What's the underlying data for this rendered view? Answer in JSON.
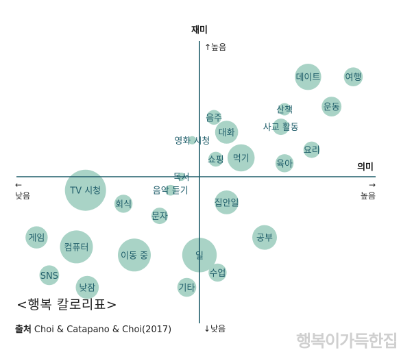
{
  "chart_data": {
    "type": "scatter",
    "title": "<행복 칼로리표>",
    "source_label": "출처",
    "source_text": "Choi & Catapano & Choi(2017)",
    "x_axis": {
      "name": "의미",
      "low": "낮음",
      "high": "높음",
      "low_arrow": "←",
      "high_arrow": "→"
    },
    "y_axis": {
      "name": "재미",
      "high": "↑높음",
      "low": "↓낮음"
    },
    "xlim": [
      -10,
      10
    ],
    "ylim": [
      -10,
      10
    ],
    "points": [
      {
        "label": "데이트",
        "x": 6.0,
        "y": 7.4,
        "size": 3.2
      },
      {
        "label": "여행",
        "x": 8.5,
        "y": 7.4,
        "size": 2.3
      },
      {
        "label": "운동",
        "x": 7.3,
        "y": 5.2,
        "size": 2.4
      },
      {
        "label": "산책",
        "x": 4.7,
        "y": 5.0,
        "size": 1.5
      },
      {
        "label": "사교 활동",
        "x": 4.5,
        "y": 3.7,
        "size": 2.0
      },
      {
        "label": "음주",
        "x": 0.8,
        "y": 4.4,
        "size": 1.8
      },
      {
        "label": "대화",
        "x": 1.5,
        "y": 3.3,
        "size": 2.8
      },
      {
        "label": "영화 시청",
        "x": -0.4,
        "y": 2.7,
        "size": 1.0
      },
      {
        "label": "먹기",
        "x": 2.3,
        "y": 1.4,
        "size": 3.3
      },
      {
        "label": "쇼핑",
        "x": 0.9,
        "y": 1.3,
        "size": 1.8
      },
      {
        "label": "요리",
        "x": 6.2,
        "y": 2.0,
        "size": 2.0
      },
      {
        "label": "육아",
        "x": 4.7,
        "y": 1.0,
        "size": 2.2
      },
      {
        "label": "독서",
        "x": -1.0,
        "y": 0.0,
        "size": 1.0
      },
      {
        "label": "음악 듣기",
        "x": -1.6,
        "y": -1.0,
        "size": 1.3
      },
      {
        "label": "TV 시청",
        "x": -6.3,
        "y": -1.0,
        "size": 5.0
      },
      {
        "label": "회식",
        "x": -4.2,
        "y": -2.0,
        "size": 2.2
      },
      {
        "label": "문자",
        "x": -2.2,
        "y": -2.9,
        "size": 2.0
      },
      {
        "label": "집안일",
        "x": 1.5,
        "y": -1.9,
        "size": 2.9
      },
      {
        "label": "공부",
        "x": 3.6,
        "y": -4.5,
        "size": 3.0
      },
      {
        "label": "일",
        "x": 0.0,
        "y": -5.8,
        "size": 4.2
      },
      {
        "label": "게임",
        "x": -9.0,
        "y": -4.5,
        "size": 2.7
      },
      {
        "label": "컴퓨터",
        "x": -6.8,
        "y": -5.2,
        "size": 4.0
      },
      {
        "label": "이동 중",
        "x": -3.6,
        "y": -5.8,
        "size": 4.0
      },
      {
        "label": "수업",
        "x": 1.0,
        "y": -7.1,
        "size": 2.2
      },
      {
        "label": "SNS",
        "x": -8.3,
        "y": -7.3,
        "size": 2.4
      },
      {
        "label": "낮잠",
        "x": -6.2,
        "y": -8.2,
        "size": 2.8
      },
      {
        "label": "기타",
        "x": -0.7,
        "y": -8.2,
        "size": 2.3
      }
    ]
  },
  "watermark": "행복이가득한집",
  "colors": {
    "bubble": "#a9d3c6",
    "label": "#1f5d6a",
    "axis": "#1f5d6a"
  }
}
